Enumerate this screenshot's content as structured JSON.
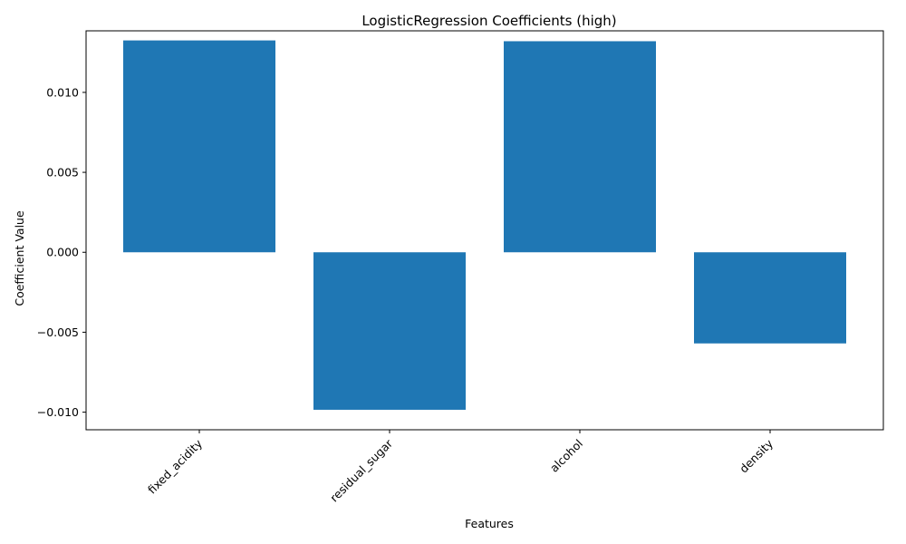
{
  "chart_data": {
    "type": "bar",
    "title": "LogisticRegression Coefficients (high)",
    "xlabel": "Features",
    "ylabel": "Coefficient Value",
    "categories": [
      "fixed_acidity",
      "residual_sugar",
      "alcohol",
      "density"
    ],
    "values": [
      0.01325,
      -0.00985,
      0.0132,
      -0.0057
    ],
    "ylim": [
      -0.0111,
      0.01385
    ],
    "yticks": [
      -0.01,
      -0.005,
      0.0,
      0.005,
      0.01
    ],
    "ytick_labels": [
      "−0.010",
      "−0.005",
      "0.000",
      "0.005",
      "0.010"
    ],
    "grid": false,
    "bar_color": "#1f77b4"
  }
}
